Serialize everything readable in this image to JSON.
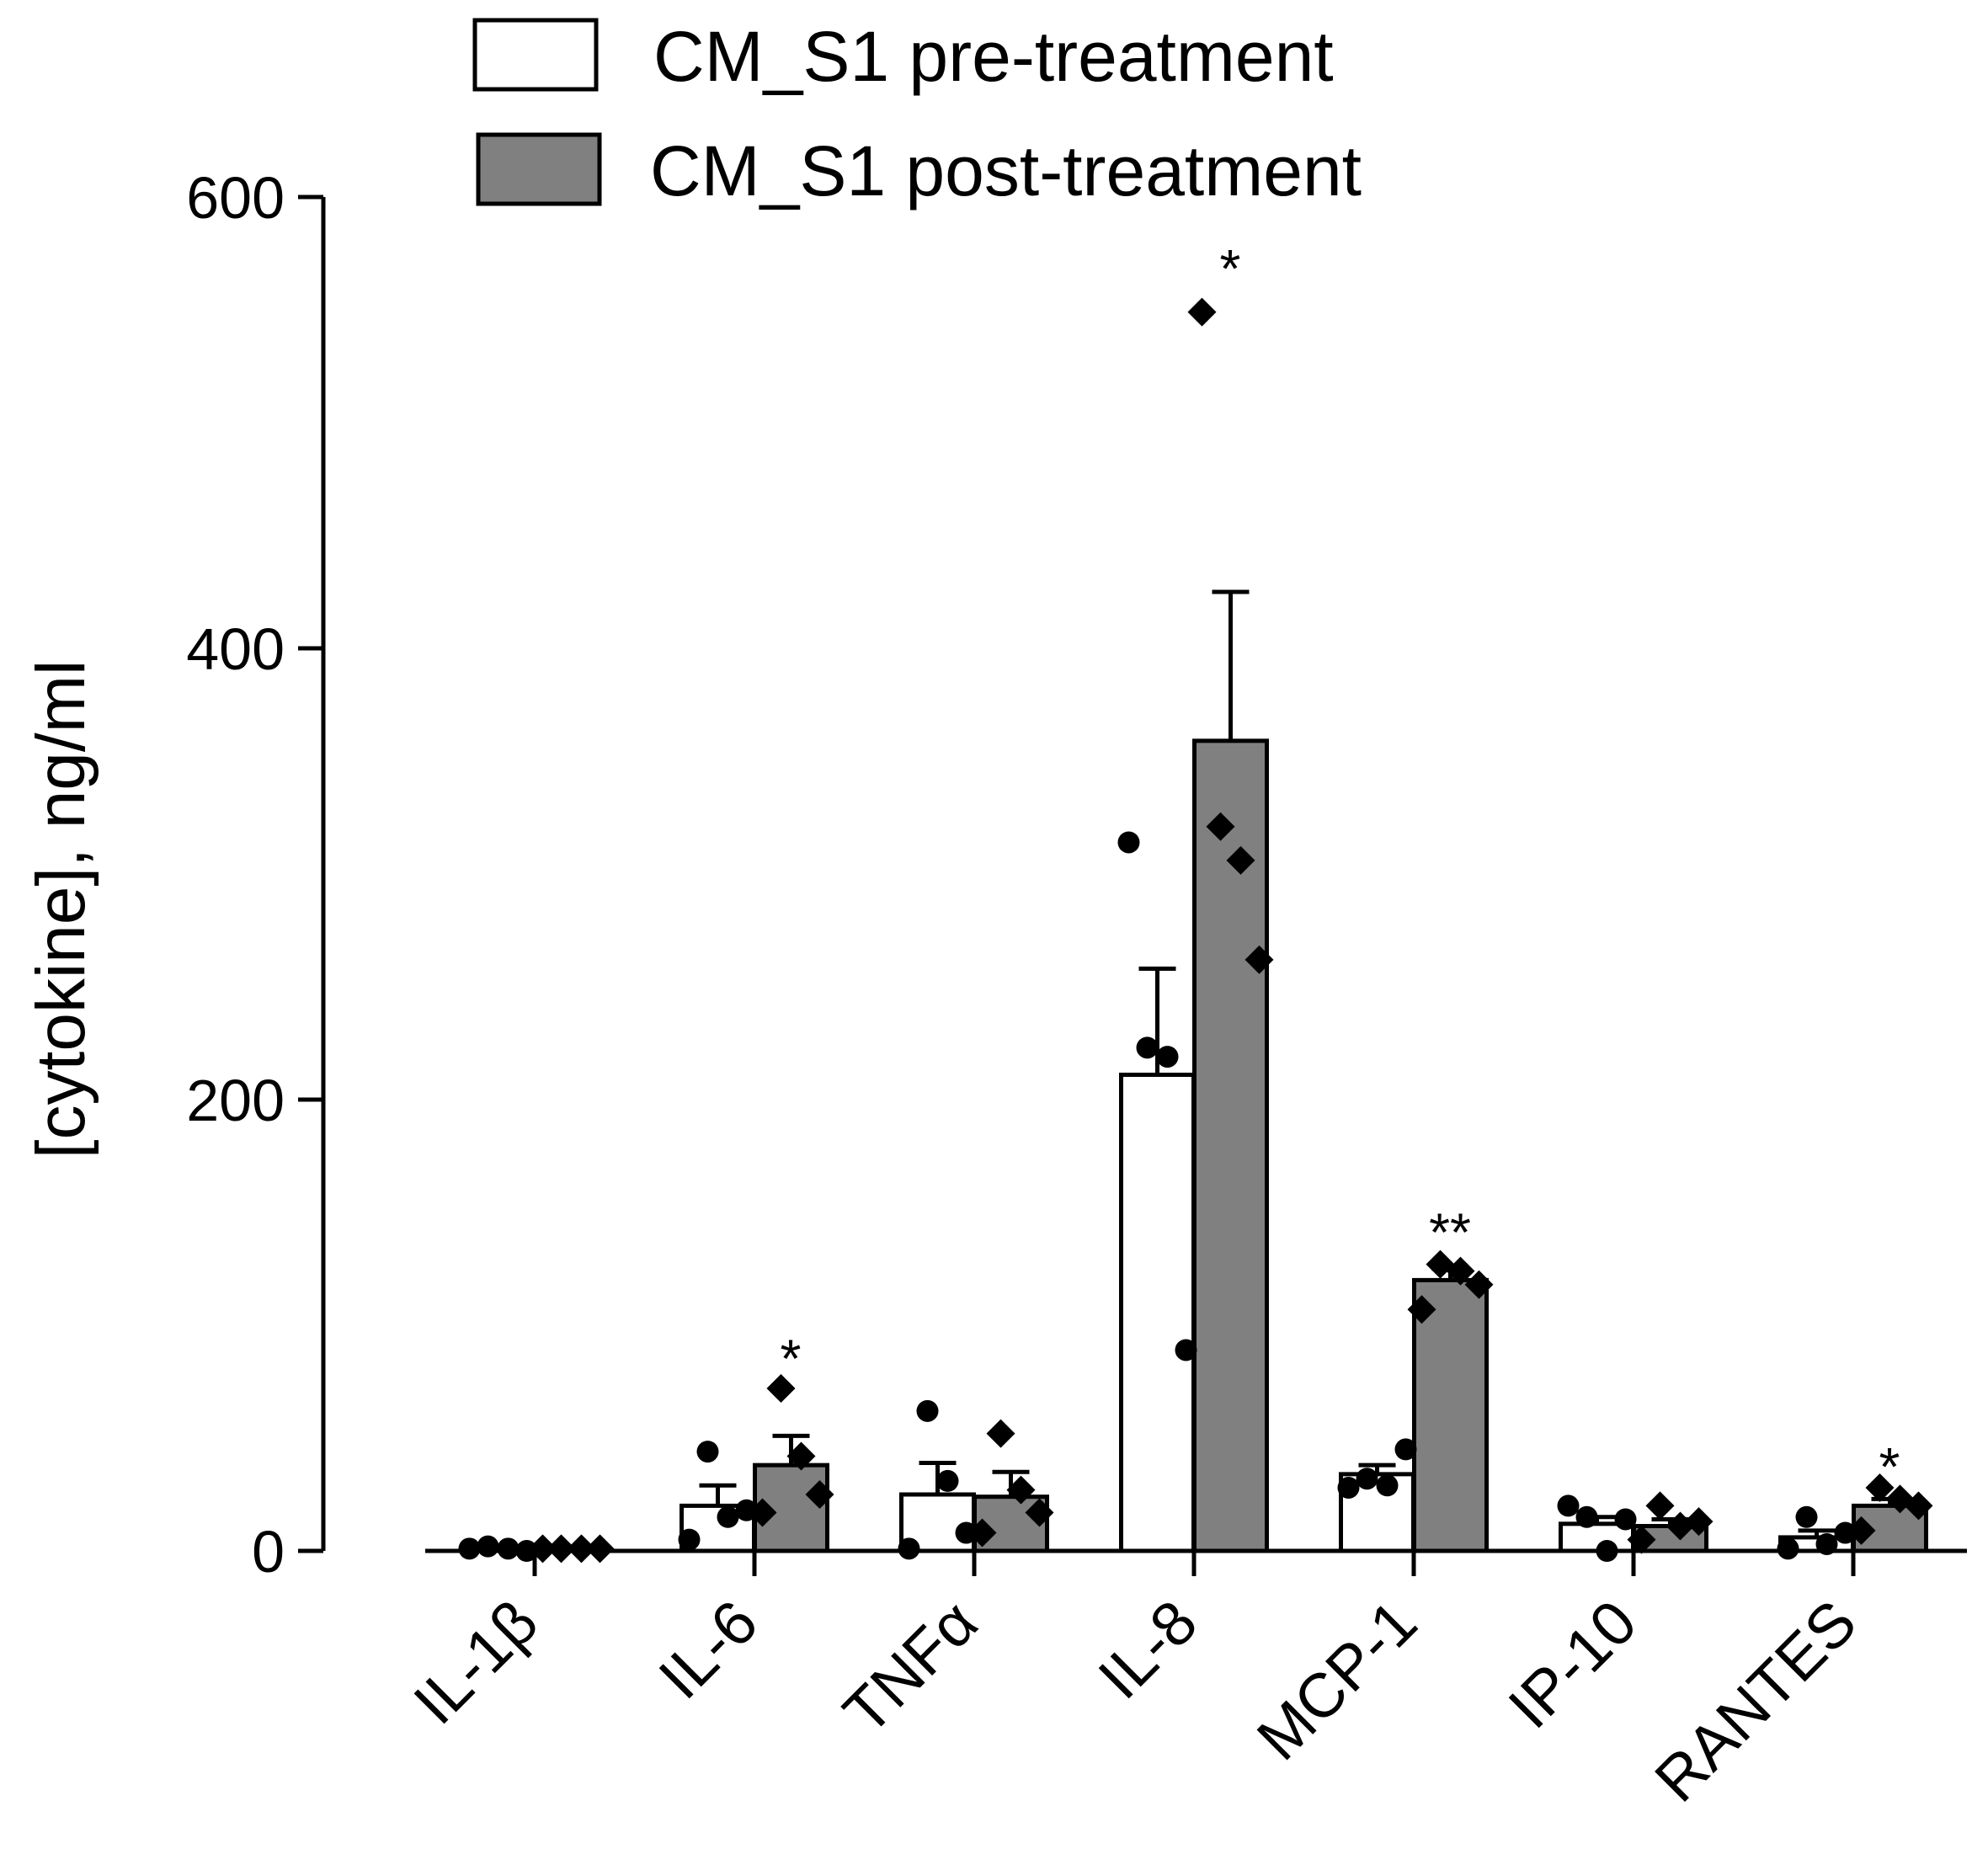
{
  "chart_data": {
    "type": "bar",
    "title": "",
    "xlabel": "",
    "ylabel": "[cytokine], ng/ml",
    "ylim": [
      0,
      600
    ],
    "yticks": [
      0,
      200,
      400,
      600
    ],
    "ytick_labels": [
      "0",
      "200",
      "400",
      "600"
    ],
    "categories": [
      "IL-1β",
      "IL-6",
      "TNFα",
      "IL-8",
      "MCP-1",
      "IP-10",
      "RANTES"
    ],
    "legend_position": "top",
    "series": [
      {
        "name": "CM_S1 pre-treatment",
        "fill": "#ffffff",
        "marker": "circle",
        "values": [
          1,
          20,
          25,
          211,
          34,
          12,
          6
        ],
        "errors": [
          0.5,
          9,
          14,
          47,
          4,
          3,
          3
        ],
        "points": [
          [
            1,
            2,
            1,
            0
          ],
          [
            5,
            44,
            15,
            18
          ],
          [
            1,
            62,
            31,
            8
          ],
          [
            314,
            223,
            219,
            89
          ],
          [
            28,
            32,
            29,
            45
          ],
          [
            20,
            15,
            0,
            14
          ],
          [
            1,
            15,
            3,
            8
          ]
        ]
      },
      {
        "name": "CM_S1 post-treatment",
        "fill": "#808080",
        "marker": "diamond",
        "values": [
          1,
          38,
          24,
          359,
          120,
          11,
          20
        ],
        "errors": [
          0.5,
          13,
          11,
          66,
          5,
          3,
          3
        ],
        "points": [
          [
            1,
            1,
            1,
            1
          ],
          [
            17,
            72,
            42,
            25
          ],
          [
            8,
            52,
            27,
            17
          ],
          [
            549,
            321,
            306,
            262
          ],
          [
            107,
            127,
            124,
            118
          ],
          [
            5,
            20,
            11,
            13
          ],
          [
            9,
            28,
            23,
            20
          ]
        ]
      }
    ],
    "significance": [
      {
        "category": "IL-6",
        "series": "CM_S1 post-treatment",
        "label": "*",
        "y": 92
      },
      {
        "category": "IL-8",
        "series": "CM_S1 post-treatment",
        "label": "*",
        "y": 575
      },
      {
        "category": "MCP-1",
        "series": "CM_S1 post-treatment",
        "label": "**",
        "y": 148
      },
      {
        "category": "RANTES",
        "series": "CM_S1 post-treatment",
        "label": "*",
        "y": 44
      }
    ]
  }
}
